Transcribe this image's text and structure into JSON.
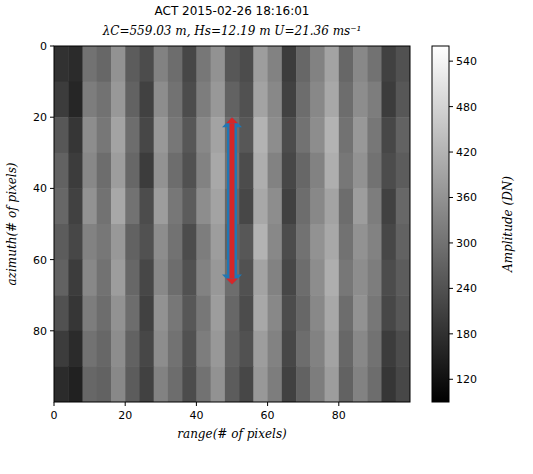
{
  "chart_data": {
    "type": "heatmap",
    "title": "ACT 2015-02-26 18:16:01",
    "subtitle": "λC=559.03 m, Hs=12.19 m U=21.36 ms⁻¹",
    "x_label": "range(# of pixels)",
    "y_label": "azimuth(# of pixels)",
    "xlim": [
      0,
      100
    ],
    "ylim": [
      100,
      0
    ],
    "xticks": [
      0,
      20,
      40,
      60,
      80
    ],
    "yticks": [
      0,
      20,
      40,
      60,
      80
    ],
    "x_edges": [
      0,
      4,
      8,
      12,
      16,
      20,
      24,
      28,
      32,
      36,
      40,
      44,
      48,
      52,
      56,
      60,
      64,
      68,
      72,
      76,
      80,
      84,
      88,
      92,
      96,
      100
    ],
    "y_edges": [
      0,
      10,
      20,
      30,
      40,
      50,
      60,
      70,
      80,
      90,
      100
    ],
    "color": "gray",
    "colorbar_label": "Amplitude (DN)",
    "clim": [
      90,
      560
    ],
    "cticks": [
      120,
      180,
      240,
      300,
      360,
      420,
      480,
      540
    ],
    "cells": [
      [
        180,
        170,
        300,
        280,
        360,
        260,
        230,
        330,
        290,
        220,
        310,
        360,
        250,
        230,
        380,
        330,
        200,
        280,
        330,
        390,
        280,
        340,
        300,
        210,
        240
      ],
      [
        200,
        160,
        320,
        300,
        370,
        270,
        210,
        350,
        300,
        230,
        320,
        370,
        270,
        240,
        390,
        340,
        210,
        290,
        340,
        400,
        290,
        350,
        320,
        200,
        250
      ],
      [
        250,
        190,
        350,
        310,
        390,
        290,
        220,
        370,
        310,
        250,
        340,
        390,
        290,
        250,
        420,
        350,
        230,
        300,
        350,
        420,
        300,
        370,
        310,
        220,
        270
      ],
      [
        270,
        200,
        340,
        290,
        380,
        280,
        200,
        360,
        290,
        240,
        330,
        400,
        300,
        230,
        410,
        330,
        220,
        280,
        330,
        410,
        310,
        360,
        300,
        230,
        260
      ],
      [
        280,
        210,
        360,
        300,
        400,
        300,
        230,
        380,
        310,
        260,
        350,
        390,
        280,
        220,
        400,
        350,
        210,
        290,
        340,
        390,
        290,
        380,
        320,
        210,
        280
      ],
      [
        260,
        220,
        330,
        310,
        370,
        270,
        240,
        350,
        300,
        230,
        320,
        380,
        270,
        250,
        420,
        340,
        230,
        300,
        360,
        400,
        300,
        360,
        330,
        220,
        270
      ],
      [
        270,
        200,
        340,
        300,
        380,
        280,
        220,
        340,
        290,
        240,
        330,
        370,
        290,
        240,
        390,
        330,
        220,
        290,
        350,
        410,
        310,
        350,
        320,
        230,
        260
      ],
      [
        240,
        190,
        320,
        290,
        360,
        290,
        210,
        360,
        310,
        250,
        310,
        380,
        280,
        230,
        400,
        340,
        230,
        280,
        340,
        400,
        290,
        360,
        310,
        220,
        250
      ],
      [
        200,
        170,
        300,
        280,
        350,
        270,
        220,
        350,
        300,
        240,
        320,
        370,
        270,
        240,
        380,
        330,
        220,
        290,
        330,
        390,
        280,
        340,
        300,
        200,
        230
      ],
      [
        170,
        150,
        280,
        270,
        340,
        260,
        210,
        330,
        290,
        230,
        300,
        360,
        260,
        220,
        370,
        320,
        210,
        270,
        320,
        380,
        270,
        330,
        290,
        190,
        220
      ]
    ]
  }
}
